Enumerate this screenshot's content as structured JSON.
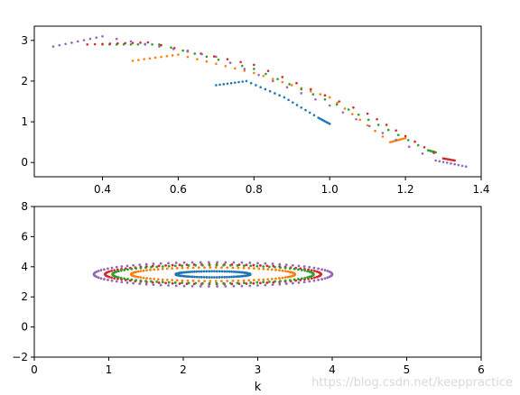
{
  "chart_data": [
    {
      "type": "scatter",
      "title": "",
      "xlabel": "",
      "ylabel": "",
      "xlim": [
        0.22,
        1.4
      ],
      "ylim": [
        -0.35,
        3.35
      ],
      "xticks": [
        0.4,
        0.6,
        0.8,
        1.0,
        1.2,
        1.4
      ],
      "xtick_labels": [
        "0.4",
        "0.6",
        "0.8",
        "1.0",
        "1.2",
        "1.4"
      ],
      "yticks": [
        0,
        1,
        2,
        3
      ],
      "ytick_labels": [
        "0",
        "1",
        "2",
        "3"
      ],
      "grid": false,
      "series": [
        {
          "color": "#1f77b4",
          "x": [
            0.7,
            0.78,
            0.88,
            0.97,
            1.0
          ],
          "y": [
            1.9,
            2.0,
            1.6,
            1.1,
            0.95
          ]
        },
        {
          "color": "#ff7f0e",
          "x": [
            0.48,
            0.6,
            0.8,
            1.0,
            1.16,
            1.2
          ],
          "y": [
            2.5,
            2.65,
            2.2,
            1.6,
            0.5,
            0.6
          ]
        },
        {
          "color": "#2ca02c",
          "x": [
            0.4,
            0.55,
            0.8,
            1.05,
            1.26,
            1.28
          ],
          "y": [
            2.9,
            2.9,
            2.3,
            1.3,
            0.3,
            0.25
          ]
        },
        {
          "color": "#d62728",
          "x": [
            0.36,
            0.52,
            0.8,
            1.1,
            1.3,
            1.33
          ],
          "y": [
            2.9,
            2.95,
            2.4,
            1.2,
            0.1,
            0.05
          ]
        },
        {
          "color": "#9467bd",
          "x": [
            0.27,
            0.4,
            0.7,
            1.0,
            1.28,
            1.36
          ],
          "y": [
            2.85,
            3.1,
            2.6,
            1.4,
            0.05,
            -0.1
          ]
        }
      ]
    },
    {
      "type": "scatter",
      "title": "",
      "xlabel": "k",
      "ylabel": "",
      "xlim": [
        0,
        6
      ],
      "ylim": [
        -2,
        8
      ],
      "xticks": [
        0,
        1,
        2,
        3,
        4,
        5,
        6
      ],
      "xtick_labels": [
        "0",
        "1",
        "2",
        "3",
        "4",
        "5",
        "6"
      ],
      "yticks": [
        -2,
        0,
        2,
        4,
        6,
        8
      ],
      "ytick_labels": [
        "−2",
        "0",
        "2",
        "4",
        "6",
        "8"
      ],
      "grid": false,
      "series": [
        {
          "color": "#1f77b4",
          "center": [
            2.4,
            3.5
          ],
          "radius": [
            0.5,
            0.2
          ]
        },
        {
          "color": "#ff7f0e",
          "center": [
            2.4,
            3.5
          ],
          "radius": [
            1.1,
            0.45
          ]
        },
        {
          "color": "#2ca02c",
          "center": [
            2.4,
            3.5
          ],
          "radius": [
            1.35,
            0.6
          ]
        },
        {
          "color": "#d62728",
          "center": [
            2.4,
            3.5
          ],
          "radius": [
            1.45,
            0.65
          ]
        },
        {
          "color": "#9467bd",
          "center": [
            2.4,
            3.5
          ],
          "radius": [
            1.6,
            0.8
          ]
        }
      ]
    }
  ],
  "watermark": "https://blog.csdn.net/keeppractice"
}
